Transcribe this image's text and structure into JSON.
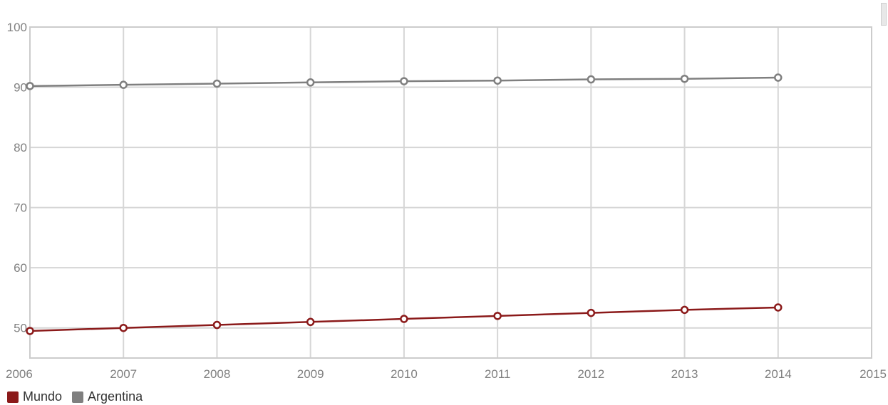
{
  "chart_data": {
    "type": "line",
    "title": "",
    "xlabel": "",
    "ylabel": "",
    "xlim": [
      2006,
      2015
    ],
    "ylim": [
      45,
      100
    ],
    "x_ticks": [
      "2006",
      "2007",
      "2008",
      "2009",
      "2010",
      "2011",
      "2012",
      "2013",
      "2014",
      "2015"
    ],
    "y_ticks": [
      "50",
      "60",
      "70",
      "80",
      "90",
      "100"
    ],
    "grid": true,
    "legend_position": "bottom-left",
    "x": [
      2006,
      2007,
      2008,
      2009,
      2010,
      2011,
      2012,
      2013,
      2014
    ],
    "series": [
      {
        "name": "Mundo",
        "color": "#8b1a1a",
        "values": [
          49.5,
          50.0,
          50.5,
          51.0,
          51.5,
          52.0,
          52.5,
          53.0,
          53.4
        ]
      },
      {
        "name": "Argentina",
        "color": "#7f7f7f",
        "values": [
          90.2,
          90.4,
          90.6,
          90.8,
          91.0,
          91.1,
          91.3,
          91.4,
          91.6
        ]
      }
    ]
  }
}
